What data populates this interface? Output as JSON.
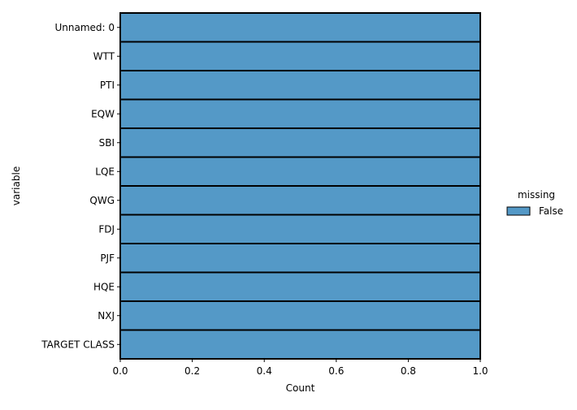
{
  "chart_data": {
    "type": "bar",
    "orientation": "horizontal",
    "stacked": true,
    "categories": [
      "Unnamed: 0",
      "WTT",
      "PTI",
      "EQW",
      "SBI",
      "LQE",
      "QWG",
      "FDJ",
      "PJF",
      "HQE",
      "NXJ",
      "TARGET CLASS"
    ],
    "series": [
      {
        "name": "False",
        "values": [
          1,
          1,
          1,
          1,
          1,
          1,
          1,
          1,
          1,
          1,
          1,
          1
        ],
        "color": "#5499c7"
      }
    ],
    "xlabel": "Count",
    "ylabel": "variable",
    "xlim": [
      0,
      1
    ],
    "xticks": [
      "0.0",
      "0.2",
      "0.4",
      "0.6",
      "0.8",
      "1.0"
    ],
    "grid": false,
    "legend": {
      "title": "missing",
      "placement": "right"
    },
    "bar_edge_color": "#000000"
  }
}
